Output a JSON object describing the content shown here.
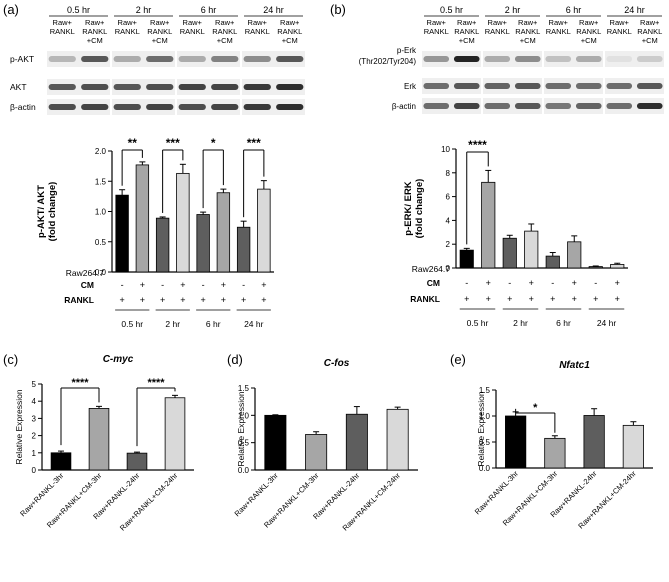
{
  "panel_letters": [
    "(a)",
    "(b)",
    "(c)",
    "(d)",
    "(e)"
  ],
  "colors": {
    "black": "#000000",
    "dark": "#5e5e5e",
    "mid": "#a6a6a6",
    "light": "#d9d9d9",
    "blot_bg": "#efefef",
    "band": "#2a2a2a"
  },
  "blot_a": {
    "time_labels": [
      "0.5 hr",
      "2 hr",
      "6 hr",
      "24 hr"
    ],
    "lane_raw": [
      "Raw+",
      "RANKL"
    ],
    "lane_cm": [
      "Raw+",
      "RANKL",
      "+CM"
    ],
    "row_labels": [
      "p-AKT",
      "AKT",
      "β-actin"
    ],
    "band_intensity": [
      [
        0.25,
        0.7,
        0.3,
        0.6,
        0.3,
        0.5,
        0.45,
        0.7
      ],
      [
        0.7,
        0.75,
        0.7,
        0.75,
        0.8,
        0.8,
        0.85,
        0.9
      ],
      [
        0.75,
        0.8,
        0.75,
        0.8,
        0.75,
        0.8,
        0.85,
        0.9
      ]
    ]
  },
  "blot_b": {
    "time_labels": [
      "0.5 hr",
      "2 hr",
      "6 hr",
      "24 hr"
    ],
    "lane_raw": [
      "Raw+",
      "RANKL"
    ],
    "lane_cm": [
      "Raw+",
      "RANKL",
      "+CM"
    ],
    "row_labels": [
      "p-Erk",
      "(Thr202/Tyr204)",
      "Erk",
      "β-actin"
    ],
    "band_intensity": [
      [
        0.4,
        0.95,
        0.3,
        0.45,
        0.2,
        0.3,
        0.05,
        0.15
      ],
      [
        0.6,
        0.7,
        0.65,
        0.7,
        0.6,
        0.6,
        0.6,
        0.7
      ],
      [
        0.6,
        0.8,
        0.6,
        0.7,
        0.55,
        0.65,
        0.6,
        0.9
      ]
    ]
  },
  "chart_data": [
    {
      "id": "a",
      "type": "bar",
      "ylabel": "p-AKT/ AKT\n(fold change)",
      "ylim": [
        0,
        2.0
      ],
      "ticks": [
        "0.0",
        "0.5",
        "1.0",
        "1.5",
        "2.0"
      ],
      "values": [
        1.27,
        1.77,
        0.89,
        1.63,
        0.95,
        1.31,
        0.74,
        1.37
      ],
      "errors": [
        0.09,
        0.05,
        0.02,
        0.15,
        0.04,
        0.06,
        0.1,
        0.14
      ],
      "colors": [
        "#000000",
        "#a6a6a6",
        "#5e5e5e",
        "#d9d9d9",
        "#5e5e5e",
        "#a6a6a6",
        "#5e5e5e",
        "#d9d9d9"
      ],
      "row_labels": [
        "Raw264.7",
        "CM",
        "RANKL"
      ],
      "cm_row": [
        "-",
        "+",
        "-",
        "+",
        "-",
        "+",
        "-",
        "+"
      ],
      "rankl_row": [
        "+",
        "+",
        "+",
        "+",
        "+",
        "+",
        "+",
        "+"
      ],
      "group_labels": [
        "0.5 hr",
        "2 hr",
        "6 hr",
        "24 hr"
      ],
      "significance": [
        "**",
        "***",
        "*",
        "***"
      ]
    },
    {
      "id": "b",
      "type": "bar",
      "ylabel": "p-ERK/ ERK\n(fold change)",
      "ylim": [
        0,
        10
      ],
      "ticks": [
        "0",
        "2",
        "4",
        "6",
        "8",
        "10"
      ],
      "values": [
        1.5,
        7.2,
        2.5,
        3.1,
        1.0,
        2.2,
        0.12,
        0.3
      ],
      "errors": [
        0.15,
        1.0,
        0.25,
        0.6,
        0.3,
        0.5,
        0.05,
        0.1
      ],
      "colors": [
        "#000000",
        "#a6a6a6",
        "#5e5e5e",
        "#d9d9d9",
        "#5e5e5e",
        "#a6a6a6",
        "#5e5e5e",
        "#d9d9d9"
      ],
      "row_labels": [
        "Raw264.7",
        "CM",
        "RANKL"
      ],
      "cm_row": [
        "-",
        "+",
        "-",
        "+",
        "-",
        "+",
        "-",
        "+"
      ],
      "rankl_row": [
        "+",
        "+",
        "+",
        "+",
        "+",
        "+",
        "+",
        "+"
      ],
      "group_labels": [
        "0.5 hr",
        "2 hr",
        "6 hr",
        "24 hr"
      ],
      "significance": [
        "****"
      ]
    },
    {
      "id": "c",
      "type": "bar",
      "title": "C-myc",
      "ylabel": "Relative Expression",
      "ylim": [
        0,
        5
      ],
      "ticks": [
        "0",
        "1",
        "2",
        "3",
        "4",
        "5"
      ],
      "categories": [
        "Raw+RANKL-3hr",
        "Raw+RANKL+CM-3hr",
        "Raw+RANKL-24hr",
        "Raw+RANKL+CM-24hr"
      ],
      "values": [
        1.0,
        3.58,
        0.98,
        4.2
      ],
      "errors": [
        0.1,
        0.12,
        0.06,
        0.14
      ],
      "colors": [
        "#000000",
        "#a6a6a6",
        "#5e5e5e",
        "#d9d9d9"
      ],
      "significance": [
        "****",
        "****"
      ]
    },
    {
      "id": "d",
      "type": "bar",
      "title": "C-fos",
      "ylabel": "Relative Expression",
      "ylim": [
        0,
        1.5
      ],
      "ticks": [
        "0.0",
        "0.5",
        "1.0",
        "1.5"
      ],
      "categories": [
        "Raw+RANKL-3hr",
        "Raw+RANKL+CM-3hr",
        "Raw+RANKL-24hr",
        "Raw+RANKL+CM-24hr"
      ],
      "values": [
        1.0,
        0.65,
        1.02,
        1.11
      ],
      "errors": [
        0.01,
        0.05,
        0.14,
        0.04
      ],
      "colors": [
        "#000000",
        "#a6a6a6",
        "#5e5e5e",
        "#d9d9d9"
      ],
      "significance": []
    },
    {
      "id": "e",
      "type": "bar",
      "title": "Nfatc1",
      "ylabel": "Relative Expression",
      "ylim": [
        0,
        1.5
      ],
      "ticks": [
        "0.0",
        "0.5",
        "1.0",
        "1.5"
      ],
      "categories": [
        "Raw+RANKL-3hr",
        "Raw+RANKL+CM-3hr",
        "Raw+RANKL-24hr",
        "Raw+RANKL+CM-24hr"
      ],
      "values": [
        1.0,
        0.57,
        1.01,
        0.82
      ],
      "errors": [
        0.08,
        0.05,
        0.13,
        0.07
      ],
      "colors": [
        "#000000",
        "#a6a6a6",
        "#5e5e5e",
        "#d9d9d9"
      ],
      "significance": [
        "*"
      ]
    }
  ]
}
